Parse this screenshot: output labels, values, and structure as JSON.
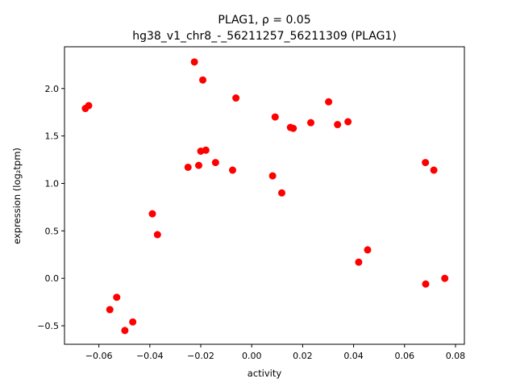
{
  "chart_data": {
    "type": "scatter",
    "title_line1": "PLAG1, ρ = 0.05",
    "title_line2": "hg38_v1_chr8_-_56211257_56211309 (PLAG1)",
    "xlabel": "activity",
    "ylabel": "expression (log₂tpm)",
    "xlim": [
      -0.0735,
      0.0835
    ],
    "ylim": [
      -0.695,
      2.44
    ],
    "xticks": [
      -0.06,
      -0.04,
      -0.02,
      0.0,
      0.02,
      0.04,
      0.06,
      0.08
    ],
    "xtick_labels": [
      "−0.06",
      "−0.04",
      "−0.02",
      "0.00",
      "0.02",
      "0.04",
      "0.06",
      "0.08"
    ],
    "yticks": [
      -0.5,
      0.0,
      0.5,
      1.0,
      1.5,
      2.0
    ],
    "ytick_labels": [
      "−0.5",
      "0.0",
      "0.5",
      "1.0",
      "1.5",
      "2.0"
    ],
    "grid": false,
    "point_color": "#ff0000",
    "points": [
      {
        "x": -0.0653,
        "y": 1.79
      },
      {
        "x": -0.064,
        "y": 1.82
      },
      {
        "x": -0.0557,
        "y": -0.33
      },
      {
        "x": -0.053,
        "y": -0.2
      },
      {
        "x": -0.0498,
        "y": -0.55
      },
      {
        "x": -0.0467,
        "y": -0.46
      },
      {
        "x": -0.039,
        "y": 0.68
      },
      {
        "x": -0.037,
        "y": 0.46
      },
      {
        "x": -0.025,
        "y": 1.17
      },
      {
        "x": -0.0225,
        "y": 2.28
      },
      {
        "x": -0.0208,
        "y": 1.19
      },
      {
        "x": -0.02,
        "y": 1.34
      },
      {
        "x": -0.0192,
        "y": 2.09
      },
      {
        "x": -0.018,
        "y": 1.35
      },
      {
        "x": -0.0142,
        "y": 1.22
      },
      {
        "x": -0.0075,
        "y": 1.14
      },
      {
        "x": -0.0062,
        "y": 1.9
      },
      {
        "x": 0.0082,
        "y": 1.08
      },
      {
        "x": 0.0092,
        "y": 1.7
      },
      {
        "x": 0.0118,
        "y": 0.9
      },
      {
        "x": 0.0152,
        "y": 1.59
      },
      {
        "x": 0.0163,
        "y": 1.58
      },
      {
        "x": 0.0232,
        "y": 1.64
      },
      {
        "x": 0.0302,
        "y": 1.86
      },
      {
        "x": 0.0337,
        "y": 1.62
      },
      {
        "x": 0.0378,
        "y": 1.65
      },
      {
        "x": 0.042,
        "y": 0.17
      },
      {
        "x": 0.0455,
        "y": 0.3
      },
      {
        "x": 0.0682,
        "y": 1.22
      },
      {
        "x": 0.0683,
        "y": -0.06
      },
      {
        "x": 0.0715,
        "y": 1.14
      },
      {
        "x": 0.0758,
        "y": 0.0
      }
    ]
  }
}
